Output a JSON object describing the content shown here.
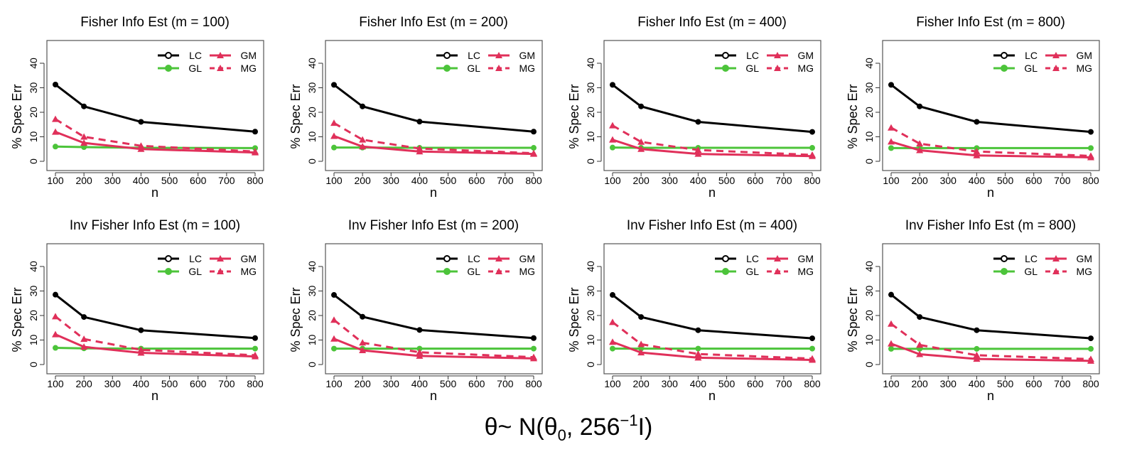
{
  "chart_data": [
    {
      "type": "line",
      "title": "Fisher Info Est (m = 100)",
      "xlabel": "n",
      "ylabel": "% Spec Err",
      "x": [
        100,
        200,
        400,
        800
      ],
      "xticks": [
        100,
        200,
        300,
        400,
        500,
        600,
        700,
        800
      ],
      "yticks": [
        0,
        10,
        20,
        30,
        40
      ],
      "ylim": [
        0,
        45
      ],
      "legend": "top-right",
      "series": [
        {
          "name": "LC",
          "values": [
            31.3,
            22.4,
            16.1,
            12.1
          ]
        },
        {
          "name": "GL",
          "values": [
            6.0,
            5.8,
            5.5,
            5.4
          ]
        },
        {
          "name": "GM",
          "values": [
            12.0,
            7.5,
            5.0,
            3.6
          ]
        },
        {
          "name": "MG",
          "values": [
            17.2,
            10.0,
            6.3,
            4.0
          ]
        }
      ]
    },
    {
      "type": "line",
      "title": "Fisher Info Est (m = 200)",
      "xlabel": "n",
      "ylabel": "% Spec Err",
      "x": [
        100,
        200,
        400,
        800
      ],
      "xticks": [
        100,
        200,
        300,
        400,
        500,
        600,
        700,
        800
      ],
      "yticks": [
        0,
        10,
        20,
        30,
        40
      ],
      "ylim": [
        0,
        45
      ],
      "legend": "top-right",
      "series": [
        {
          "name": "LC",
          "values": [
            31.2,
            22.4,
            16.2,
            12.1
          ]
        },
        {
          "name": "GL",
          "values": [
            5.6,
            5.6,
            5.5,
            5.5
          ]
        },
        {
          "name": "GM",
          "values": [
            10.3,
            6.0,
            4.0,
            3.0
          ]
        },
        {
          "name": "MG",
          "values": [
            15.6,
            8.8,
            5.2,
            3.3
          ]
        }
      ]
    },
    {
      "type": "line",
      "title": "Fisher Info Est (m = 400)",
      "xlabel": "n",
      "ylabel": "% Spec Err",
      "x": [
        100,
        200,
        400,
        800
      ],
      "xticks": [
        100,
        200,
        300,
        400,
        500,
        600,
        700,
        800
      ],
      "yticks": [
        0,
        10,
        20,
        30,
        40
      ],
      "ylim": [
        0,
        45
      ],
      "legend": "top-right",
      "series": [
        {
          "name": "LC",
          "values": [
            31.2,
            22.4,
            16.1,
            12.0
          ]
        },
        {
          "name": "GL",
          "values": [
            5.6,
            5.5,
            5.5,
            5.5
          ]
        },
        {
          "name": "GM",
          "values": [
            8.8,
            5.0,
            3.0,
            2.1
          ]
        },
        {
          "name": "MG",
          "values": [
            14.6,
            7.9,
            4.6,
            2.6
          ]
        }
      ]
    },
    {
      "type": "line",
      "title": "Fisher Info Est (m = 800)",
      "xlabel": "n",
      "ylabel": "% Spec Err",
      "x": [
        100,
        200,
        400,
        800
      ],
      "xticks": [
        100,
        200,
        300,
        400,
        500,
        600,
        700,
        800
      ],
      "yticks": [
        0,
        10,
        20,
        30,
        40
      ],
      "ylim": [
        0,
        45
      ],
      "legend": "top-right",
      "series": [
        {
          "name": "LC",
          "values": [
            31.2,
            22.4,
            16.1,
            12.0
          ]
        },
        {
          "name": "GL",
          "values": [
            5.4,
            5.4,
            5.4,
            5.4
          ]
        },
        {
          "name": "GM",
          "values": [
            8.0,
            4.5,
            2.4,
            1.6
          ]
        },
        {
          "name": "MG",
          "values": [
            13.7,
            7.2,
            4.0,
            2.2
          ]
        }
      ]
    },
    {
      "type": "line",
      "title": "Inv Fisher Info Est (m = 100)",
      "xlabel": "n",
      "ylabel": "% Spec Err",
      "x": [
        100,
        200,
        400,
        800
      ],
      "xticks": [
        100,
        200,
        300,
        400,
        500,
        600,
        700,
        800
      ],
      "yticks": [
        0,
        10,
        20,
        30,
        40
      ],
      "ylim": [
        0,
        45
      ],
      "legend": "top-right",
      "series": [
        {
          "name": "LC",
          "values": [
            28.5,
            19.4,
            14.0,
            10.8
          ]
        },
        {
          "name": "GL",
          "values": [
            6.8,
            6.6,
            6.5,
            6.5
          ]
        },
        {
          "name": "GM",
          "values": [
            12.3,
            7.2,
            4.8,
            3.3
          ]
        },
        {
          "name": "MG",
          "values": [
            19.6,
            10.4,
            6.0,
            3.8
          ]
        }
      ]
    },
    {
      "type": "line",
      "title": "Inv Fisher Info Est (m = 200)",
      "xlabel": "n",
      "ylabel": "% Spec Err",
      "x": [
        100,
        200,
        400,
        800
      ],
      "xticks": [
        100,
        200,
        300,
        400,
        500,
        600,
        700,
        800
      ],
      "yticks": [
        0,
        10,
        20,
        30,
        40
      ],
      "ylim": [
        0,
        45
      ],
      "legend": "top-right",
      "series": [
        {
          "name": "LC",
          "values": [
            28.4,
            19.5,
            14.1,
            10.8
          ]
        },
        {
          "name": "GL",
          "values": [
            6.5,
            6.5,
            6.5,
            6.5
          ]
        },
        {
          "name": "GM",
          "values": [
            10.5,
            5.8,
            3.5,
            2.5
          ]
        },
        {
          "name": "MG",
          "values": [
            18.2,
            8.9,
            5.0,
            3.0
          ]
        }
      ]
    },
    {
      "type": "line",
      "title": "Inv Fisher Info Est (m = 400)",
      "xlabel": "n",
      "ylabel": "% Spec Err",
      "x": [
        100,
        200,
        400,
        800
      ],
      "xticks": [
        100,
        200,
        300,
        400,
        500,
        600,
        700,
        800
      ],
      "yticks": [
        0,
        10,
        20,
        30,
        40
      ],
      "ylim": [
        0,
        45
      ],
      "legend": "top-right",
      "series": [
        {
          "name": "LC",
          "values": [
            28.4,
            19.4,
            14.0,
            10.7
          ]
        },
        {
          "name": "GL",
          "values": [
            6.5,
            6.5,
            6.5,
            6.5
          ]
        },
        {
          "name": "GM",
          "values": [
            9.2,
            4.9,
            2.8,
            1.9
          ]
        },
        {
          "name": "MG",
          "values": [
            17.3,
            8.3,
            4.3,
            2.4
          ]
        }
      ]
    },
    {
      "type": "line",
      "title": "Inv Fisher Info Est (m = 800)",
      "xlabel": "n",
      "ylabel": "% Spec Err",
      "x": [
        100,
        200,
        400,
        800
      ],
      "xticks": [
        100,
        200,
        300,
        400,
        500,
        600,
        700,
        800
      ],
      "yticks": [
        0,
        10,
        20,
        30,
        40
      ],
      "ylim": [
        0,
        45
      ],
      "legend": "top-right",
      "series": [
        {
          "name": "LC",
          "values": [
            28.5,
            19.4,
            14.0,
            10.7
          ]
        },
        {
          "name": "GL",
          "values": [
            6.4,
            6.4,
            6.4,
            6.4
          ]
        },
        {
          "name": "GM",
          "values": [
            8.5,
            4.2,
            2.3,
            1.5
          ]
        },
        {
          "name": "MG",
          "values": [
            16.6,
            8.0,
            3.8,
            2.2
          ]
        }
      ]
    }
  ],
  "series_styles": {
    "LC": {
      "color": "#000000",
      "marker": "circle",
      "dash": false
    },
    "GL": {
      "color": "#4cc43a",
      "marker": "circle",
      "dash": false
    },
    "GM": {
      "color": "#e0305a",
      "marker": "triangle",
      "dash": false
    },
    "MG": {
      "color": "#e0305a",
      "marker": "triangle",
      "dash": true
    }
  },
  "caption": {
    "main": "θ~ N(θ",
    "sub": "0",
    "mid": ", 256",
    "sup": "−1",
    "end": "I)"
  }
}
